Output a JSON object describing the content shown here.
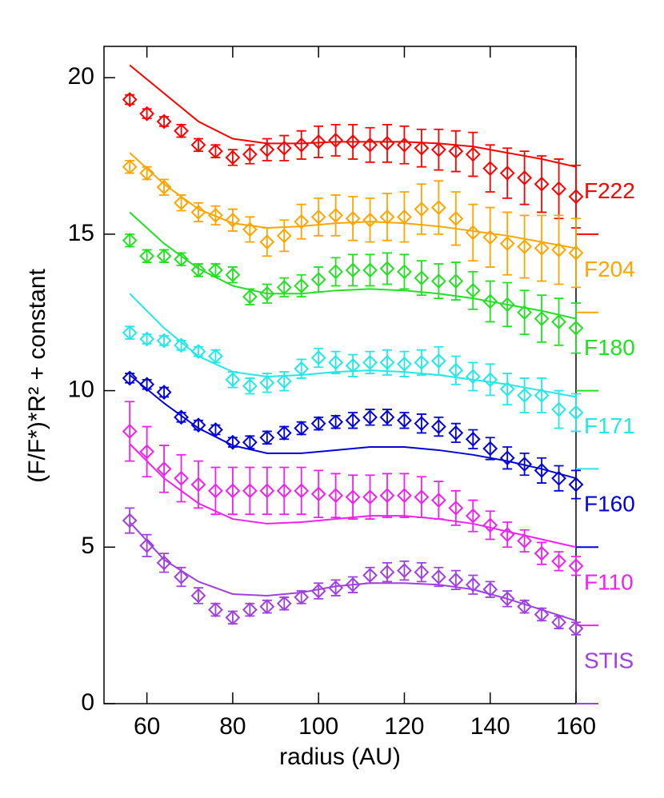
{
  "chart_data": {
    "type": "errorbar-model",
    "x_label": "radius (AU)",
    "y_label": "(F/F*)*R² + constant",
    "xlim": [
      50,
      160
    ],
    "ylim": [
      0,
      21
    ],
    "xticks": [
      60,
      80,
      100,
      120,
      140,
      160
    ],
    "yticks": [
      0,
      5,
      10,
      15,
      20
    ],
    "x": [
      56,
      60,
      64,
      68,
      72,
      76,
      80,
      84,
      88,
      92,
      96,
      100,
      104,
      108,
      112,
      116,
      120,
      124,
      128,
      132,
      136,
      140,
      144,
      148,
      152,
      156,
      160
    ],
    "model_x": [
      56,
      64,
      72,
      80,
      88,
      96,
      104,
      112,
      120,
      128,
      136,
      144,
      152,
      160
    ],
    "series": [
      {
        "name": "F222",
        "color": "#ff0000",
        "offset": 15,
        "values": [
          19.3,
          18.85,
          18.6,
          18.3,
          17.85,
          17.65,
          17.45,
          17.55,
          17.7,
          17.75,
          17.85,
          17.95,
          18.0,
          17.95,
          17.85,
          17.9,
          17.85,
          17.75,
          17.7,
          17.65,
          17.55,
          17.1,
          16.95,
          16.8,
          16.6,
          16.45,
          16.2
        ],
        "errors": [
          0.15,
          0.15,
          0.15,
          0.2,
          0.2,
          0.2,
          0.25,
          0.3,
          0.35,
          0.4,
          0.45,
          0.5,
          0.5,
          0.55,
          0.55,
          0.6,
          0.6,
          0.6,
          0.65,
          0.65,
          0.7,
          0.75,
          0.8,
          0.85,
          0.9,
          0.95,
          1.0
        ],
        "model": [
          20.4,
          19.5,
          18.6,
          18.05,
          17.9,
          17.9,
          17.95,
          17.95,
          17.95,
          17.9,
          17.8,
          17.6,
          17.4,
          17.15
        ]
      },
      {
        "name": "F204",
        "color": "#ffa500",
        "offset": 12.5,
        "values": [
          17.15,
          16.95,
          16.5,
          16.0,
          15.7,
          15.6,
          15.45,
          15.15,
          14.75,
          14.95,
          15.4,
          15.55,
          15.6,
          15.5,
          15.45,
          15.55,
          15.55,
          15.8,
          15.85,
          15.5,
          15.05,
          14.9,
          14.7,
          14.6,
          14.55,
          14.5,
          14.4
        ],
        "errors": [
          0.2,
          0.2,
          0.25,
          0.25,
          0.3,
          0.3,
          0.35,
          0.4,
          0.45,
          0.5,
          0.55,
          0.6,
          0.65,
          0.7,
          0.7,
          0.75,
          0.8,
          0.8,
          0.85,
          0.85,
          0.9,
          0.95,
          1.0,
          1.0,
          1.05,
          1.1,
          1.1
        ],
        "model": [
          17.6,
          16.6,
          15.8,
          15.35,
          15.2,
          15.25,
          15.35,
          15.4,
          15.35,
          15.25,
          15.1,
          14.95,
          14.75,
          14.55
        ]
      },
      {
        "name": "F180",
        "color": "#22e022",
        "offset": 10,
        "values": [
          14.8,
          14.3,
          14.3,
          14.2,
          13.85,
          13.85,
          13.7,
          13.0,
          13.1,
          13.3,
          13.35,
          13.55,
          13.8,
          13.85,
          13.85,
          13.9,
          13.8,
          13.6,
          13.5,
          13.5,
          13.2,
          12.85,
          12.75,
          12.5,
          12.3,
          12.2,
          12.0
        ],
        "errors": [
          0.2,
          0.2,
          0.2,
          0.2,
          0.2,
          0.2,
          0.25,
          0.25,
          0.3,
          0.3,
          0.35,
          0.4,
          0.45,
          0.5,
          0.5,
          0.5,
          0.55,
          0.55,
          0.55,
          0.6,
          0.6,
          0.65,
          0.7,
          0.7,
          0.75,
          0.75,
          0.8
        ],
        "model": [
          15.7,
          14.7,
          13.9,
          13.35,
          13.1,
          13.1,
          13.2,
          13.25,
          13.2,
          13.1,
          12.95,
          12.75,
          12.55,
          12.3
        ]
      },
      {
        "name": "F171",
        "color": "#22e8e8",
        "offset": 7.5,
        "values": [
          11.85,
          11.65,
          11.6,
          11.45,
          11.25,
          11.1,
          10.35,
          10.15,
          10.25,
          10.3,
          10.7,
          11.05,
          10.9,
          10.8,
          10.9,
          10.9,
          10.85,
          10.9,
          10.95,
          10.65,
          10.45,
          10.35,
          10.05,
          9.85,
          9.85,
          9.4,
          9.3
        ],
        "errors": [
          0.2,
          0.15,
          0.15,
          0.15,
          0.15,
          0.2,
          0.25,
          0.25,
          0.3,
          0.3,
          0.3,
          0.3,
          0.35,
          0.35,
          0.35,
          0.4,
          0.4,
          0.4,
          0.45,
          0.45,
          0.45,
          0.5,
          0.5,
          0.55,
          0.55,
          0.6,
          0.6
        ],
        "model": [
          13.1,
          12.0,
          11.1,
          10.6,
          10.45,
          10.5,
          10.6,
          10.65,
          10.6,
          10.5,
          10.35,
          10.2,
          10.0,
          9.8
        ]
      },
      {
        "name": "F160",
        "color": "#0000dd",
        "offset": 5,
        "values": [
          10.4,
          10.2,
          9.95,
          9.15,
          8.9,
          8.75,
          8.35,
          8.35,
          8.5,
          8.65,
          8.8,
          8.95,
          9.0,
          9.05,
          9.15,
          9.15,
          9.05,
          8.95,
          8.85,
          8.65,
          8.45,
          8.15,
          7.85,
          7.65,
          7.45,
          7.2,
          7.0
        ],
        "errors": [
          0.15,
          0.15,
          0.15,
          0.15,
          0.15,
          0.15,
          0.15,
          0.2,
          0.2,
          0.2,
          0.2,
          0.2,
          0.2,
          0.25,
          0.25,
          0.25,
          0.25,
          0.3,
          0.3,
          0.3,
          0.3,
          0.35,
          0.35,
          0.35,
          0.4,
          0.4,
          0.45
        ],
        "model": [
          10.5,
          9.6,
          8.8,
          8.25,
          8.0,
          8.0,
          8.1,
          8.2,
          8.2,
          8.1,
          7.95,
          7.75,
          7.5,
          7.2
        ]
      },
      {
        "name": "F110",
        "color": "#f020f0",
        "offset": 2.5,
        "values": [
          8.7,
          8.05,
          7.5,
          7.2,
          7.0,
          6.8,
          6.8,
          6.8,
          6.8,
          6.8,
          6.8,
          6.7,
          6.65,
          6.6,
          6.6,
          6.65,
          6.65,
          6.6,
          6.5,
          6.25,
          6.0,
          5.7,
          5.4,
          5.2,
          4.8,
          4.55,
          4.4
        ],
        "errors": [
          0.95,
          0.8,
          0.75,
          0.75,
          0.75,
          0.75,
          0.75,
          0.75,
          0.75,
          0.75,
          0.75,
          0.75,
          0.7,
          0.7,
          0.7,
          0.7,
          0.7,
          0.65,
          0.6,
          0.55,
          0.5,
          0.45,
          0.4,
          0.35,
          0.35,
          0.3,
          0.3
        ],
        "model": [
          8.3,
          7.2,
          6.4,
          5.9,
          5.75,
          5.8,
          5.9,
          6.0,
          6.0,
          5.9,
          5.75,
          5.5,
          5.25,
          5.0
        ]
      },
      {
        "name": "STIS",
        "color": "#a040e0",
        "offset": 0,
        "values": [
          5.85,
          5.05,
          4.5,
          4.05,
          3.45,
          3.0,
          2.75,
          3.0,
          3.1,
          3.2,
          3.4,
          3.6,
          3.7,
          3.8,
          4.1,
          4.2,
          4.25,
          4.2,
          4.05,
          3.95,
          3.8,
          3.65,
          3.35,
          3.1,
          2.85,
          2.6,
          2.4
        ],
        "errors": [
          0.4,
          0.35,
          0.3,
          0.3,
          0.25,
          0.2,
          0.2,
          0.2,
          0.2,
          0.2,
          0.2,
          0.25,
          0.25,
          0.25,
          0.25,
          0.3,
          0.3,
          0.3,
          0.3,
          0.3,
          0.3,
          0.25,
          0.25,
          0.2,
          0.2,
          0.2,
          0.2
        ],
        "model": [
          5.8,
          4.6,
          3.9,
          3.5,
          3.45,
          3.55,
          3.75,
          3.85,
          3.85,
          3.8,
          3.65,
          3.35,
          3.0,
          2.65
        ]
      }
    ]
  }
}
